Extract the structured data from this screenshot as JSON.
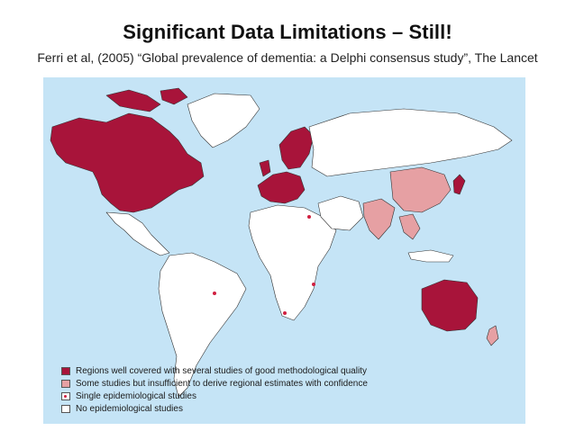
{
  "title": "Significant Data Limitations – Still!",
  "subtitle": "Ferri et al, (2005) “Global prevalence of dementia:  a Delphi consensus study”,  The Lancet",
  "colors": {
    "ocean": "#c5e4f6",
    "well_covered": "#a8143a",
    "some_studies": "#e6a0a3",
    "single_study_dot": "#d02040",
    "no_studies": "#ffffff",
    "border": "#333333"
  },
  "legend": [
    {
      "label": "Regions well covered with several studies of good methodological quality",
      "swatch": "well_covered"
    },
    {
      "label": "Some studies but insufficient to derive regional estimates with confidence",
      "swatch": "some_studies"
    },
    {
      "label": "Single epidemiological studies",
      "swatch": "single_study"
    },
    {
      "label": "No epidemiological studies",
      "swatch": "no_studies"
    }
  ]
}
